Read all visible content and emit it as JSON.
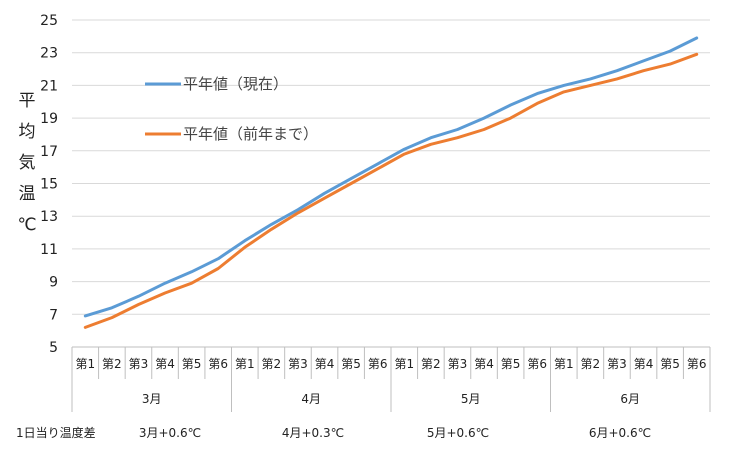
{
  "chart_data": {
    "type": "line",
    "ylabel": [
      "平",
      "均",
      "気",
      "温",
      "℃"
    ],
    "ylim": [
      5,
      25
    ],
    "yticks": [
      5,
      7,
      9,
      11,
      13,
      15,
      17,
      19,
      21,
      23,
      25
    ],
    "grid": "horizontal",
    "legend_placement": "top-left",
    "months": [
      "3月",
      "4月",
      "5月",
      "6月"
    ],
    "categories": [
      "第1",
      "第2",
      "第3",
      "第4",
      "第5",
      "第6",
      "第1",
      "第2",
      "第3",
      "第4",
      "第5",
      "第6",
      "第1",
      "第2",
      "第3",
      "第4",
      "第5",
      "第6",
      "第1",
      "第2",
      "第3",
      "第4",
      "第5",
      "第6"
    ],
    "series": [
      {
        "name": "平年値（現在）",
        "color": "#5B9BD5",
        "values": [
          6.9,
          7.4,
          8.1,
          8.9,
          9.6,
          10.4,
          11.5,
          12.5,
          13.4,
          14.4,
          15.3,
          16.2,
          17.1,
          17.8,
          18.3,
          19.0,
          19.8,
          20.5,
          21.0,
          21.4,
          21.9,
          22.5,
          23.1,
          23.9
        ]
      },
      {
        "name": "平年値（前年まで）",
        "color": "#ED7D31",
        "values": [
          6.2,
          6.8,
          7.6,
          8.3,
          8.9,
          9.8,
          11.1,
          12.2,
          13.2,
          14.1,
          15.0,
          15.9,
          16.8,
          17.4,
          17.8,
          18.3,
          19.0,
          19.9,
          20.6,
          21.0,
          21.4,
          21.9,
          22.3,
          22.9
        ]
      }
    ]
  },
  "footer": {
    "label": "1日当り温度差",
    "diffs": [
      "3月+0.6℃",
      "4月+0.3℃",
      "5月+0.6℃",
      "6月+0.6℃"
    ]
  }
}
